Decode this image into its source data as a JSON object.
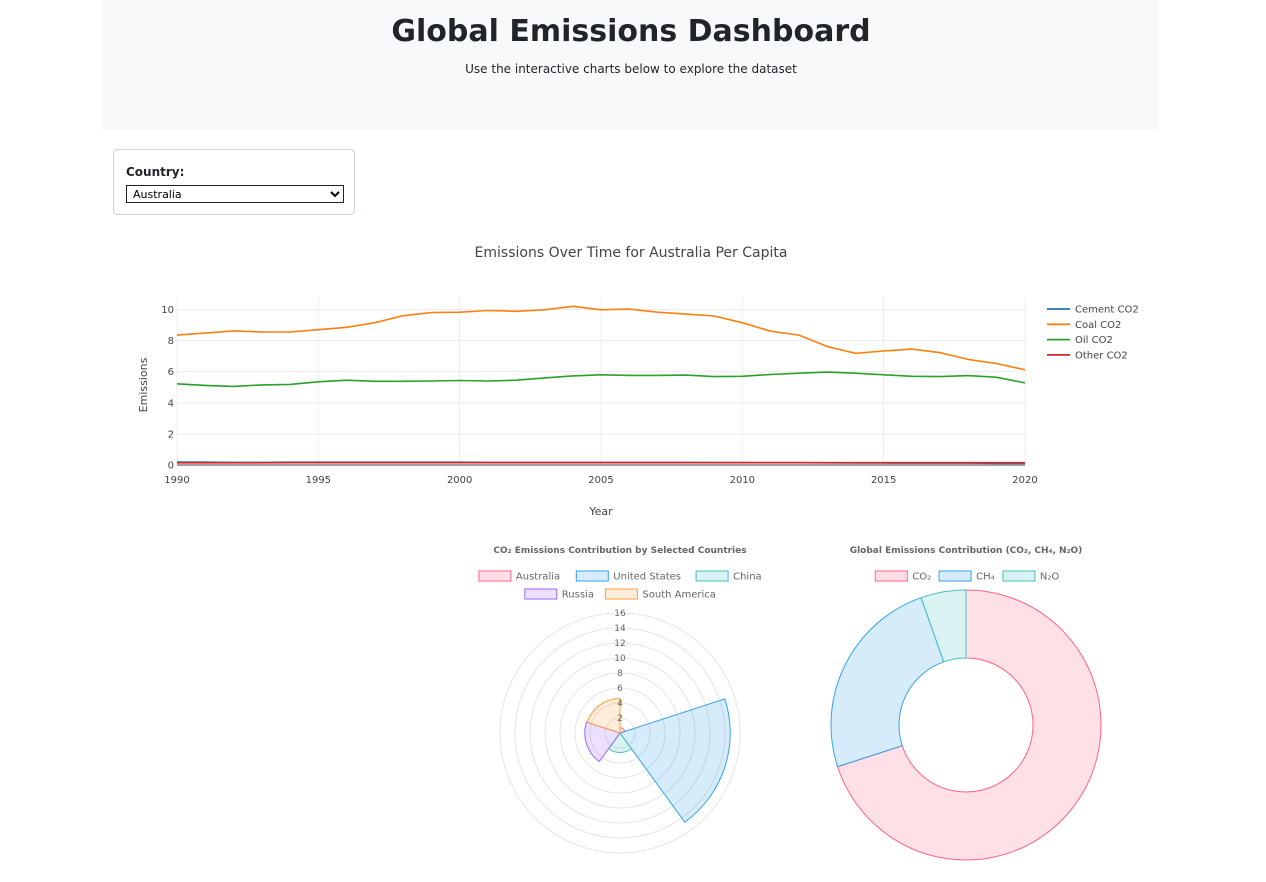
{
  "header": {
    "title": "Global Emissions Dashboard",
    "subtitle": "Use the interactive charts below to explore the dataset"
  },
  "selector": {
    "label": "Country:",
    "selected": "Australia",
    "options": [
      "Australia"
    ]
  },
  "chart_data": [
    {
      "type": "line",
      "title": "Emissions Over Time for Australia Per Capita",
      "xlabel": "Year",
      "ylabel": "Emissions",
      "xlim": [
        1990,
        2020
      ],
      "ylim": [
        0,
        10.8
      ],
      "xticks": [
        1990,
        1995,
        2000,
        2005,
        2010,
        2015,
        2020
      ],
      "yticks": [
        0,
        2,
        4,
        6,
        8,
        10
      ],
      "grid": true,
      "legend": "right",
      "x": [
        1990,
        1991,
        1992,
        1993,
        1994,
        1995,
        1996,
        1997,
        1998,
        1999,
        2000,
        2001,
        2002,
        2003,
        2004,
        2005,
        2006,
        2007,
        2008,
        2009,
        2010,
        2011,
        2012,
        2013,
        2014,
        2015,
        2016,
        2017,
        2018,
        2019,
        2020
      ],
      "series": [
        {
          "name": "Cement CO2",
          "color": "#1f77b4",
          "values": [
            0.19,
            0.18,
            0.17,
            0.17,
            0.18,
            0.18,
            0.18,
            0.18,
            0.18,
            0.18,
            0.18,
            0.17,
            0.17,
            0.17,
            0.17,
            0.17,
            0.17,
            0.17,
            0.17,
            0.16,
            0.16,
            0.15,
            0.15,
            0.14,
            0.13,
            0.13,
            0.12,
            0.12,
            0.12,
            0.11,
            0.11
          ]
        },
        {
          "name": "Coal CO2",
          "color": "#ff7f0e",
          "values": [
            8.35,
            8.48,
            8.62,
            8.55,
            8.55,
            8.7,
            8.85,
            9.15,
            9.6,
            9.8,
            9.82,
            9.93,
            9.88,
            9.98,
            10.2,
            9.98,
            10.02,
            9.82,
            9.7,
            9.58,
            9.15,
            8.6,
            8.35,
            7.62,
            7.18,
            7.33,
            7.45,
            7.22,
            6.78,
            6.52,
            6.12
          ]
        },
        {
          "name": "Oil CO2",
          "color": "#2ca02c",
          "values": [
            5.22,
            5.12,
            5.05,
            5.15,
            5.18,
            5.35,
            5.45,
            5.38,
            5.38,
            5.4,
            5.43,
            5.4,
            5.45,
            5.6,
            5.73,
            5.8,
            5.76,
            5.76,
            5.78,
            5.68,
            5.7,
            5.82,
            5.9,
            5.97,
            5.9,
            5.8,
            5.7,
            5.68,
            5.75,
            5.64,
            5.28
          ]
        },
        {
          "name": "Other CO2",
          "color": "#d62728",
          "values": [
            0.14,
            0.14,
            0.14,
            0.14,
            0.15,
            0.15,
            0.15,
            0.15,
            0.15,
            0.15,
            0.15,
            0.15,
            0.15,
            0.15,
            0.15,
            0.15,
            0.15,
            0.15,
            0.15,
            0.15,
            0.15,
            0.15,
            0.15,
            0.15,
            0.15,
            0.15,
            0.15,
            0.15,
            0.15,
            0.15,
            0.15
          ]
        }
      ]
    },
    {
      "type": "polarArea",
      "title": "CO₂ Emissions Contribution by Selected Countries",
      "rmax": 16,
      "rticks": [
        2,
        4,
        6,
        8,
        10,
        12,
        14,
        16
      ],
      "legend": "top",
      "categories": [
        "Australia",
        "United States",
        "China",
        "Russia",
        "South America"
      ],
      "values": [
        0.7,
        14.7,
        2.6,
        4.7,
        4.6
      ],
      "colors": [
        "#ff6384",
        "#36a2eb",
        "#4bc0c0",
        "#9966ff",
        "#ff9f40"
      ]
    },
    {
      "type": "doughnut",
      "title": "Global Emissions Contribution (CO₂, CH₄, N₂O)",
      "legend": "top",
      "categories": [
        "CO₂",
        "CH₄",
        "N₂O"
      ],
      "values": [
        70,
        24.6,
        5.4
      ],
      "colors": [
        "#ff6384",
        "#36a2eb",
        "#4bc0c0"
      ]
    }
  ]
}
